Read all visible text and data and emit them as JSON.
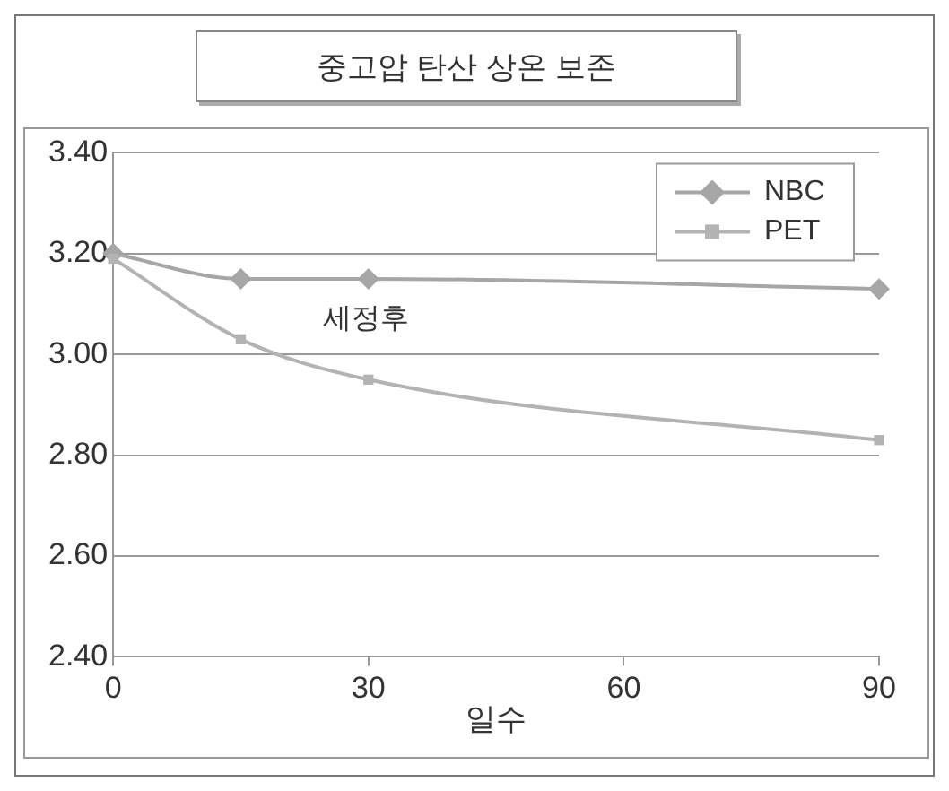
{
  "chart_data": {
    "type": "line",
    "title": "중고압 탄산 상온 보존",
    "xlabel": "일수",
    "x": [
      0,
      15,
      30,
      90
    ],
    "series": [
      {
        "name": "NBC",
        "color": "#a6a6a6",
        "values": [
          3.2,
          3.15,
          3.15,
          3.13
        ],
        "marker": "diamond"
      },
      {
        "name": "PET",
        "color": "#b3b3b3",
        "values": [
          3.19,
          3.03,
          2.95,
          2.83
        ],
        "marker": "square"
      }
    ],
    "xlim": [
      0,
      90
    ],
    "xticks": [
      0,
      30,
      60,
      90
    ],
    "ylim": [
      2.4,
      3.4
    ],
    "yticks": [
      {
        "value": 2.4,
        "label": "2.40"
      },
      {
        "value": 2.6,
        "label": "2.60"
      },
      {
        "value": 2.8,
        "label": "2.80"
      },
      {
        "value": 3.0,
        "label": "3.00"
      },
      {
        "value": 3.2,
        "label": "3.20"
      },
      {
        "value": 3.4,
        "label": "3.40"
      }
    ],
    "grid": "y",
    "legend": "top right",
    "line_style": "solid",
    "annotations": [
      "세정후"
    ]
  }
}
